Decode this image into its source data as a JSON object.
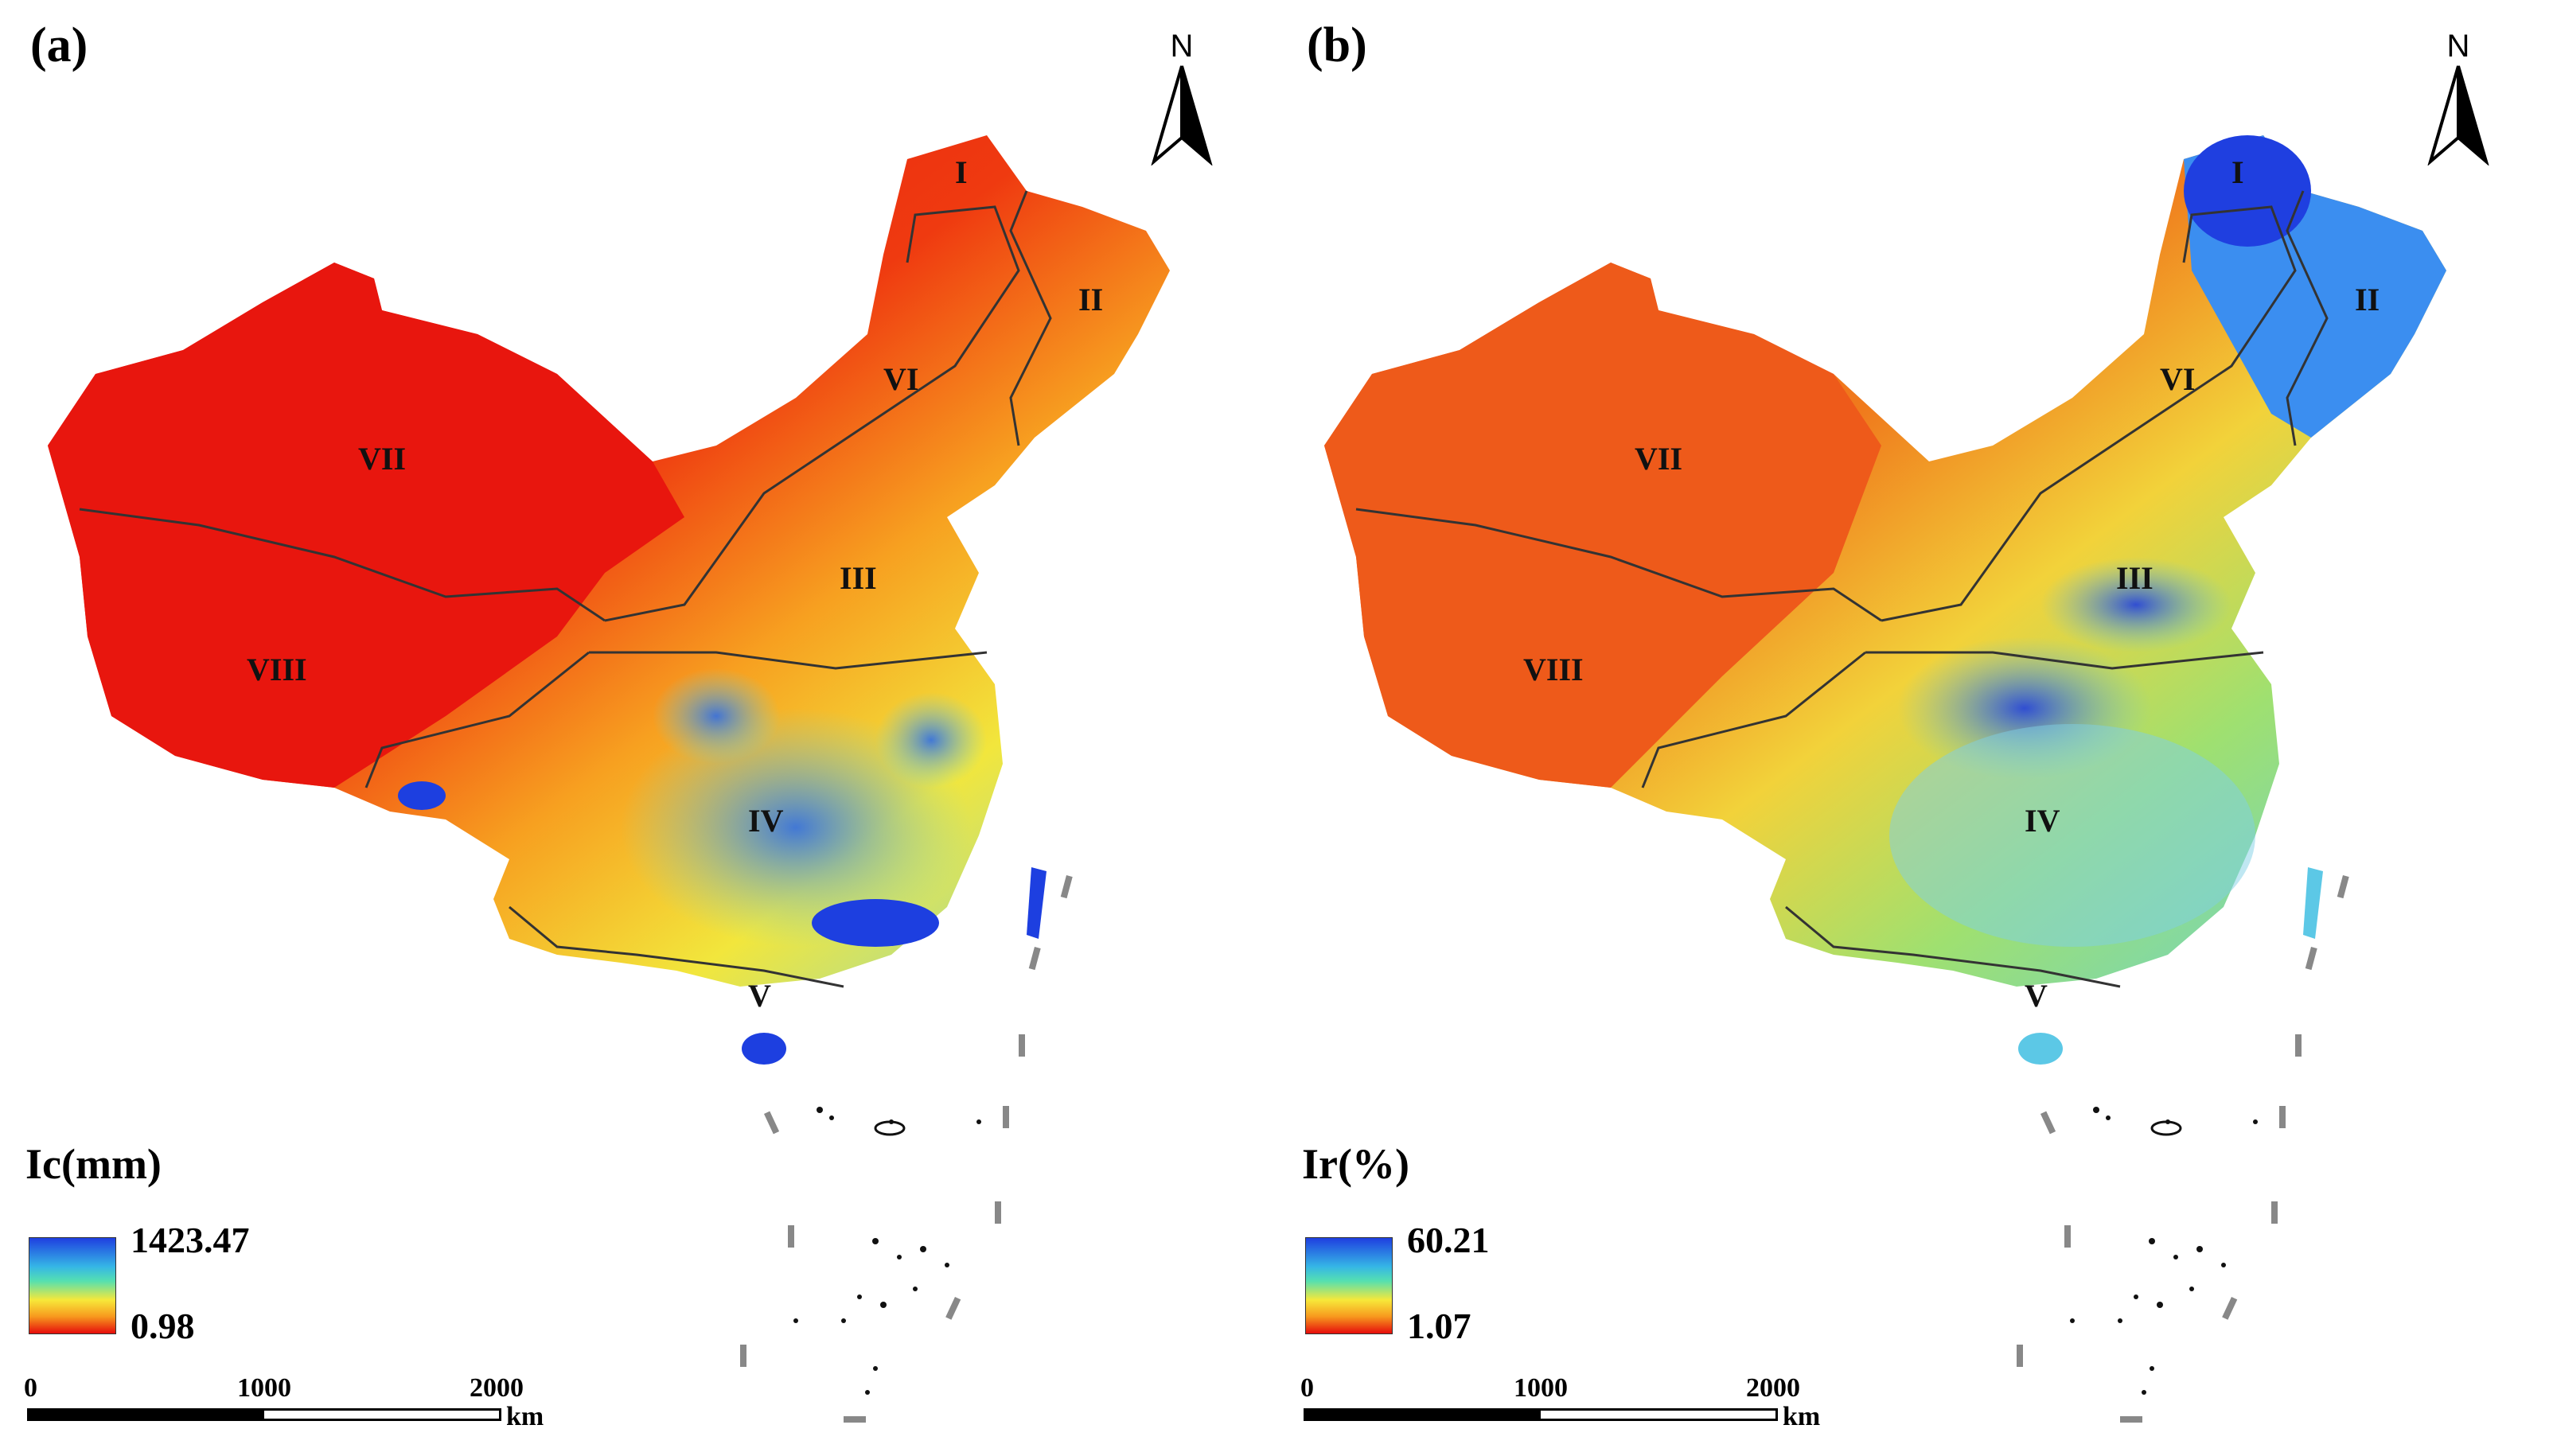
{
  "panels": [
    {
      "label": "(a)",
      "north": "N",
      "legend": {
        "title": "Ic(mm)",
        "max": "1423.47",
        "min": "0.98"
      },
      "scale": {
        "ticks": [
          "0",
          "1000",
          "2000"
        ],
        "unit": "km"
      },
      "regions": [
        "I",
        "II",
        "III",
        "IV",
        "V",
        "VI",
        "VII",
        "VIII"
      ],
      "colors": {
        "ramp_top": "#1f3fe0",
        "ramp_mid": "#f7e83a",
        "ramp_bottom": "#e60c0c"
      }
    },
    {
      "label": "(b)",
      "north": "N",
      "legend": {
        "title": "Ir(%)",
        "max": "60.21",
        "min": "1.07"
      },
      "scale": {
        "ticks": [
          "0",
          "1000",
          "2000"
        ],
        "unit": "km"
      },
      "regions": [
        "I",
        "II",
        "III",
        "IV",
        "V",
        "VI",
        "VII",
        "VIII"
      ],
      "colors": {
        "ramp_top": "#1f3fe0",
        "ramp_mid": "#f7e83a",
        "ramp_bottom": "#e60c0c"
      }
    }
  ]
}
